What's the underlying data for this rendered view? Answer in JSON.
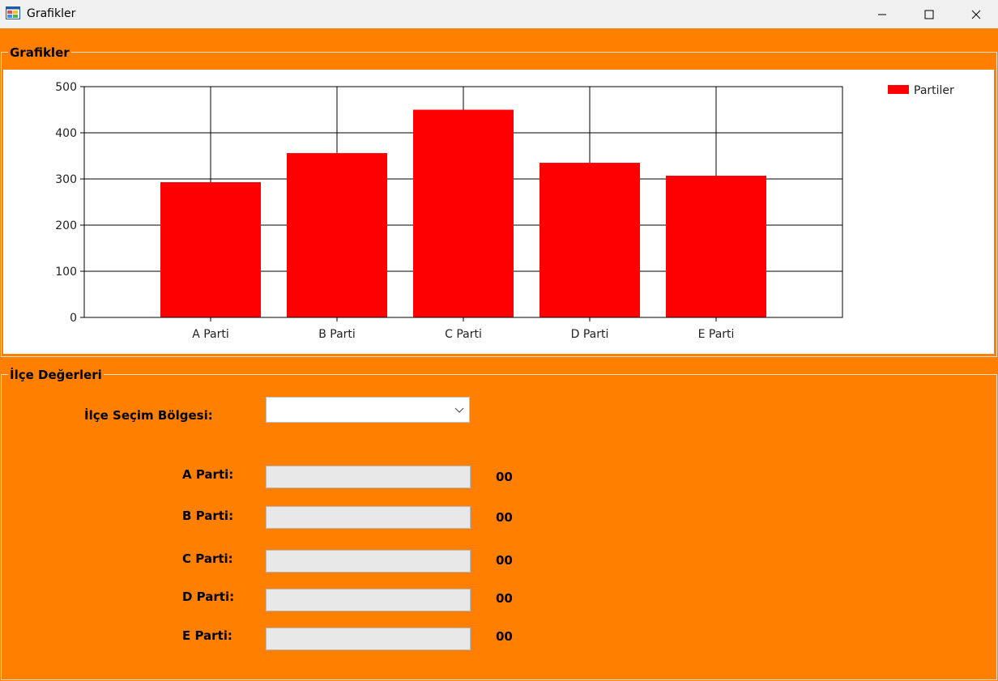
{
  "window": {
    "title": "Grafikler",
    "min_icon": "minimize-icon",
    "max_icon": "maximize-icon",
    "close_icon": "close-icon"
  },
  "chart_group": {
    "legend": "Grafikler"
  },
  "chart_data": {
    "type": "bar",
    "categories": [
      "A Parti",
      "B Parti",
      "C Parti",
      "D Parti",
      "E Parti"
    ],
    "series": [
      {
        "name": "Partiler",
        "values": [
          293,
          356,
          450,
          335,
          307
        ],
        "color": "#ff0000"
      }
    ],
    "ylim": [
      0,
      500
    ],
    "yticks": [
      0,
      100,
      200,
      300,
      400,
      500
    ],
    "grid": true,
    "legend_position": "top-right"
  },
  "district_group": {
    "legend": "İlçe Değerleri",
    "region_label": "İlçe Seçim Bölgesi:",
    "region_value": "",
    "rows": [
      {
        "label": "A Parti:",
        "value": "00"
      },
      {
        "label": "B Parti:",
        "value": "00"
      },
      {
        "label": "C Parti:",
        "value": "00"
      },
      {
        "label": "D Parti:",
        "value": "00"
      },
      {
        "label": "E Parti:",
        "value": "00"
      }
    ]
  },
  "colors": {
    "background": "#ff8000",
    "bar": "#ff0000",
    "titlebar": "#f0f0f0"
  }
}
